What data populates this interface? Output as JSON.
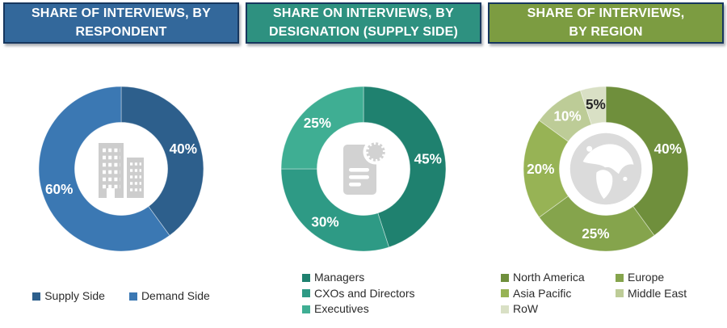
{
  "chart_data": [
    {
      "type": "donut",
      "title": "SHARE OF INTERVIEWS, BY RESPONDENT",
      "title_lines": [
        "SHARE OF INTERVIEWS, BY",
        "RESPONDENT"
      ],
      "header_bg": "#33689B",
      "header_border": "#17375E",
      "icon": "building-icon",
      "legend_position": "bottom-row",
      "segments": [
        {
          "label": "Supply Side",
          "value": 40,
          "data_label": "40%",
          "color": "#2D5F8C",
          "label_color": "#FFFFFF"
        },
        {
          "label": "Demand Side",
          "value": 60,
          "data_label": "60%",
          "color": "#3B78B3",
          "label_color": "#FFFFFF"
        }
      ]
    },
    {
      "type": "donut",
      "title": "SHARE ON INTERVIEWS, BY DESIGNATION (SUPPLY SIDE)",
      "title_lines": [
        "SHARE ON INTERVIEWS, BY",
        "DESIGNATION (SUPPLY SIDE)"
      ],
      "header_bg": "#2E9180",
      "header_border": "#17375E",
      "icon": "document-seal-icon",
      "legend_position": "bottom-column",
      "segments": [
        {
          "label": "Managers",
          "value": 45,
          "data_label": "45%",
          "color": "#1F816F",
          "label_color": "#FFFFFF"
        },
        {
          "label": "CXOs and Directors",
          "value": 30,
          "data_label": "30%",
          "color": "#2E9A85",
          "label_color": "#FFFFFF"
        },
        {
          "label": "Executives",
          "value": 25,
          "data_label": "25%",
          "color": "#3FAE93",
          "label_color": "#FFFFFF"
        }
      ]
    },
    {
      "type": "donut",
      "title": "SHARE OF INTERVIEWS, BY REGION",
      "title_lines": [
        "SHARE OF INTERVIEWS,",
        "BY REGION"
      ],
      "header_bg": "#7C9C41",
      "header_border": "#17375E",
      "icon": "globe-icon",
      "legend_position": "bottom-grid-2col",
      "segments": [
        {
          "label": "North America",
          "value": 40,
          "data_label": "40%",
          "color": "#6F8F3C",
          "label_color": "#FFFFFF"
        },
        {
          "label": "Europe",
          "value": 25,
          "data_label": "25%",
          "color": "#85A44C",
          "label_color": "#FFFFFF"
        },
        {
          "label": "Asia Pacific",
          "value": 20,
          "data_label": "20%",
          "color": "#97B355",
          "label_color": "#FFFFFF"
        },
        {
          "label": "Middle East",
          "value": 10,
          "data_label": "10%",
          "color": "#BDCC97",
          "label_color": "#FFFFFF"
        },
        {
          "label": "RoW",
          "value": 5,
          "data_label": "5%",
          "color": "#D9E0C5",
          "label_color": "#262626"
        }
      ]
    }
  ]
}
